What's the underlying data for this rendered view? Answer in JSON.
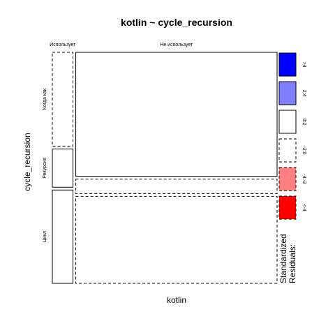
{
  "chart_data": {
    "type": "mosaic",
    "title": "kotlin ~ cycle_recursion",
    "xlabel": "kotlin",
    "ylabel": "cycle_recursion",
    "x_categories": [
      "Использует",
      "Не использует"
    ],
    "y_categories": [
      "Когда как",
      "Рекурсия",
      "Цикл"
    ],
    "x_proportions": [
      0.093,
      0.907
    ],
    "cells": [
      {
        "x": "Использует",
        "y": "Когда как",
        "proportion": 0.416,
        "residual_class": "-2:0"
      },
      {
        "x": "Использует",
        "y": "Рекурсия",
        "proportion": 0.17,
        "residual_class": "0:2"
      },
      {
        "x": "Использует",
        "y": "Цикл",
        "proportion": 0.414,
        "residual_class": "0:2"
      },
      {
        "x": "Не использует",
        "y": "Когда как",
        "proportion": 0.55,
        "residual_class": "0:2"
      },
      {
        "x": "Не использует",
        "y": "Рекурсия",
        "proportion": 0.064,
        "residual_class": "-2:0"
      },
      {
        "x": "Не использует",
        "y": "Цикл",
        "proportion": 0.386,
        "residual_class": "-2:0"
      }
    ],
    "legend": {
      "title": "Standardized Residuals:",
      "placement": "right",
      "entries": [
        {
          "label": ">4",
          "color": "#0000ff",
          "border": "solid"
        },
        {
          "label": "2:4",
          "color": "#8080ff",
          "border": "solid"
        },
        {
          "label": "0:2",
          "color": "#ffffff",
          "border": "solid"
        },
        {
          "label": "-2:0",
          "color": "#ffffff",
          "border": "dashed"
        },
        {
          "label": "-4:-2",
          "color": "#ff8080",
          "border": "dashed"
        },
        {
          "label": "<-4",
          "color": "#ff0000",
          "border": "dashed"
        }
      ]
    }
  }
}
